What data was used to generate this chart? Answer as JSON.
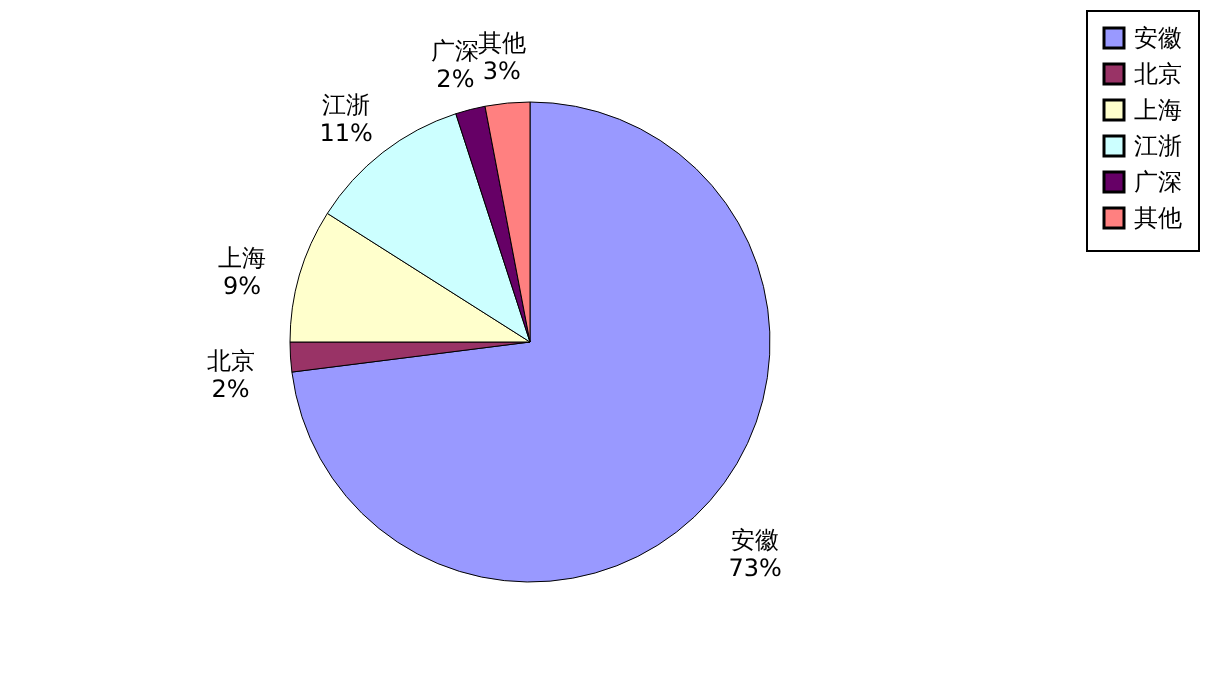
{
  "chart_data": {
    "type": "pie",
    "categories": [
      "安徽",
      "北京",
      "上海",
      "江浙",
      "广深",
      "其他"
    ],
    "values": [
      73,
      2,
      9,
      11,
      2,
      3
    ],
    "colors": [
      "#9999ff",
      "#993366",
      "#ffffcc",
      "#ccffff",
      "#660066",
      "#ff8080"
    ],
    "value_labels": [
      "73%",
      "2%",
      "9%",
      "11%",
      "2%",
      "3%"
    ],
    "legend": "right"
  }
}
